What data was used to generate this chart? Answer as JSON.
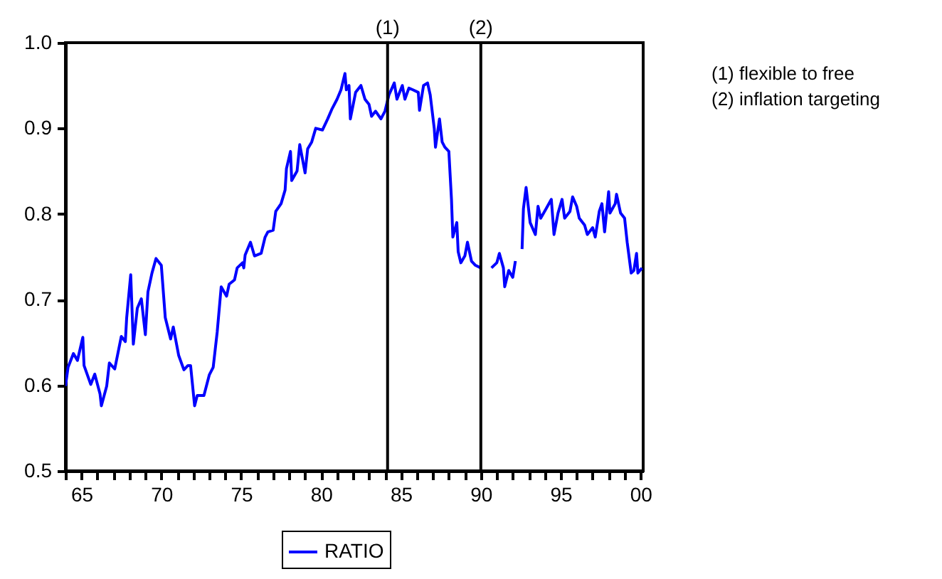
{
  "chart_data": {
    "type": "line",
    "x": [
      "1964-01",
      "1964-03",
      "1964-07",
      "1964-10",
      "1965-02",
      "1965-03",
      "1965-08",
      "1965-11",
      "1966-03",
      "1966-04",
      "1966-08",
      "1966-10",
      "1967-02",
      "1967-07",
      "1967-10",
      "1967-11",
      "1968-02",
      "1968-04",
      "1968-07",
      "1968-10",
      "1969-01",
      "1969-03",
      "1969-06",
      "1969-09",
      "1970-01",
      "1970-04",
      "1970-08",
      "1970-10",
      "1971-02",
      "1971-06",
      "1971-09",
      "1971-11",
      "1972-02",
      "1972-04",
      "1972-09",
      "1973-01",
      "1973-04",
      "1973-07",
      "1973-10",
      "1974-02",
      "1974-04",
      "1974-08",
      "1974-10",
      "1975-02",
      "1975-03",
      "1975-04",
      "1975-08",
      "1975-11",
      "1976-04",
      "1976-07",
      "1976-09",
      "1977-01",
      "1977-03",
      "1977-07",
      "1977-10",
      "1977-11",
      "1978-02",
      "1978-03",
      "1978-07",
      "1978-09",
      "1979-01",
      "1979-03",
      "1979-06",
      "1979-09",
      "1980-02",
      "1980-06",
      "1980-09",
      "1981-01",
      "1981-04",
      "1981-07",
      "1981-08",
      "1981-10",
      "1981-11",
      "1982-03",
      "1982-07",
      "1982-10",
      "1983-01",
      "1983-03",
      "1983-06",
      "1983-10",
      "1984-01",
      "1984-04",
      "1984-08",
      "1984-10",
      "1985-02",
      "1985-04",
      "1985-07",
      "1985-10",
      "1986-02",
      "1986-03",
      "1986-06",
      "1986-09",
      "1986-11",
      "1987-02",
      "1987-03",
      "1987-06",
      "1987-08",
      "1987-10",
      "1988-01",
      "1988-03",
      "1988-04",
      "1988-07",
      "1988-08",
      "1988-10",
      "1989-01",
      "1989-03",
      "1989-06",
      "1989-09",
      "1990-01",
      "1990-04",
      "1990-09",
      "1991-01",
      "1991-03",
      "1991-06",
      "1991-07",
      "1991-10",
      "1992-01",
      "1992-03",
      "1992-06",
      "1992-08",
      "1992-09",
      "1992-11",
      "1993-02",
      "1993-06",
      "1993-08",
      "1993-10",
      "1994-02",
      "1994-06",
      "1994-08",
      "1994-11",
      "1995-02",
      "1995-04",
      "1995-08",
      "1995-10",
      "1996-01",
      "1996-03",
      "1996-07",
      "1996-09",
      "1997-01",
      "1997-03",
      "1997-06",
      "1997-08",
      "1997-10",
      "1998-01",
      "1998-02",
      "1998-06",
      "1998-07",
      "1998-10",
      "1999-01",
      "1999-03",
      "1999-06",
      "1999-08",
      "1999-10",
      "1999-11",
      "2000-02"
    ],
    "series": [
      {
        "name": "RATIO",
        "color": "#0000ff",
        "values": [
          0.599,
          0.621,
          0.637,
          0.629,
          0.656,
          0.623,
          0.601,
          0.613,
          0.59,
          0.576,
          0.599,
          0.626,
          0.619,
          0.657,
          0.651,
          0.679,
          0.729,
          0.648,
          0.69,
          0.701,
          0.659,
          0.709,
          0.731,
          0.748,
          0.74,
          0.679,
          0.654,
          0.668,
          0.635,
          0.618,
          0.623,
          0.623,
          0.576,
          0.588,
          0.588,
          0.612,
          0.621,
          0.662,
          0.715,
          0.704,
          0.718,
          0.723,
          0.737,
          0.743,
          0.737,
          0.752,
          0.767,
          0.751,
          0.754,
          0.773,
          0.779,
          0.781,
          0.803,
          0.812,
          0.828,
          0.853,
          0.873,
          0.839,
          0.85,
          0.881,
          0.848,
          0.876,
          0.884,
          0.9,
          0.898,
          0.911,
          0.922,
          0.934,
          0.945,
          0.964,
          0.945,
          0.95,
          0.911,
          0.942,
          0.95,
          0.934,
          0.928,
          0.914,
          0.92,
          0.911,
          0.92,
          0.939,
          0.953,
          0.934,
          0.95,
          0.934,
          0.947,
          0.945,
          0.942,
          0.921,
          0.95,
          0.953,
          0.939,
          0.9,
          0.878,
          0.911,
          0.884,
          0.878,
          0.873,
          0.817,
          0.773,
          0.79,
          0.756,
          0.743,
          0.751,
          0.767,
          0.745,
          0.74,
          0.737,
          null,
          0.737,
          0.743,
          0.754,
          0.737,
          0.715,
          0.734,
          0.726,
          0.745,
          null,
          0.759,
          0.806,
          0.831,
          0.79,
          0.776,
          0.809,
          0.795,
          0.806,
          0.817,
          0.776,
          0.801,
          0.817,
          0.795,
          0.803,
          0.82,
          0.809,
          0.795,
          0.787,
          0.776,
          0.784,
          0.773,
          0.803,
          0.812,
          0.779,
          0.826,
          0.801,
          0.812,
          0.823,
          0.801,
          0.795,
          0.767,
          0.731,
          0.734,
          0.754,
          0.731,
          0.737
        ]
      }
    ],
    "xlim": [
      "1964-01",
      "2000-03"
    ],
    "xticks": [
      {
        "value": "1964",
        "label": null
      },
      {
        "value": "1965",
        "label": "65"
      },
      {
        "value": "1966",
        "label": null
      },
      {
        "value": "1967",
        "label": null
      },
      {
        "value": "1968",
        "label": null
      },
      {
        "value": "1969",
        "label": null
      },
      {
        "value": "1970",
        "label": "70"
      },
      {
        "value": "1971",
        "label": null
      },
      {
        "value": "1972",
        "label": null
      },
      {
        "value": "1973",
        "label": null
      },
      {
        "value": "1974",
        "label": null
      },
      {
        "value": "1975",
        "label": "75"
      },
      {
        "value": "1976",
        "label": null
      },
      {
        "value": "1977",
        "label": null
      },
      {
        "value": "1978",
        "label": null
      },
      {
        "value": "1979",
        "label": null
      },
      {
        "value": "1980",
        "label": "80"
      },
      {
        "value": "1981",
        "label": null
      },
      {
        "value": "1982",
        "label": null
      },
      {
        "value": "1983",
        "label": null
      },
      {
        "value": "1984",
        "label": null
      },
      {
        "value": "1985",
        "label": "85"
      },
      {
        "value": "1986",
        "label": null
      },
      {
        "value": "1987",
        "label": null
      },
      {
        "value": "1988",
        "label": null
      },
      {
        "value": "1989",
        "label": null
      },
      {
        "value": "1990",
        "label": "90"
      },
      {
        "value": "1991",
        "label": null
      },
      {
        "value": "1992",
        "label": null
      },
      {
        "value": "1993",
        "label": null
      },
      {
        "value": "1994",
        "label": null
      },
      {
        "value": "1995",
        "label": "95"
      },
      {
        "value": "1996",
        "label": null
      },
      {
        "value": "1997",
        "label": null
      },
      {
        "value": "1998",
        "label": null
      },
      {
        "value": "1999",
        "label": null
      },
      {
        "value": "2000",
        "label": "00"
      }
    ],
    "ylim": [
      0.5,
      1.0
    ],
    "yticks": [
      0.5,
      0.6,
      0.7,
      0.8,
      0.9,
      {
        "value": 1.0,
        "label": "1.0"
      }
    ],
    "ref_lines": [
      {
        "axis": "x",
        "value": "1984-03",
        "label": "(1)",
        "color": "#000000"
      },
      {
        "axis": "x",
        "value": "1990-01",
        "label": "(2)",
        "color": "#000000"
      }
    ],
    "annotations": [
      "(1) flexible to free",
      "(2) inflation targeting"
    ],
    "grid": false,
    "legend": "bottom",
    "marker": "none",
    "line_style": "solid"
  }
}
